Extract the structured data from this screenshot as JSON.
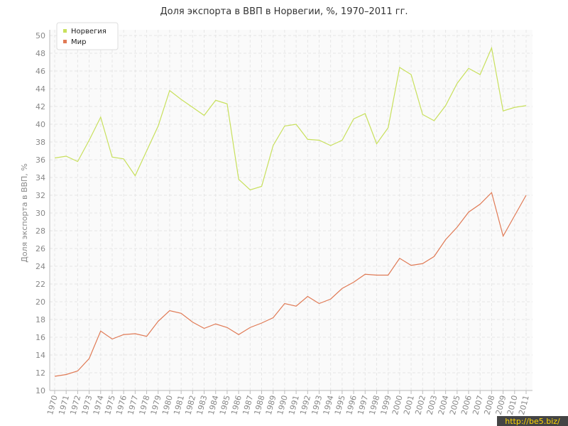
{
  "chart_data": {
    "type": "line",
    "title": "Доля экспорта в ВВП в Норвегии, %, 1970–2011 гг.",
    "y_label": "Доля экспорта в ВВП, %",
    "watermark": "http://be5.biz/",
    "categories": [
      "1970",
      "1971",
      "1972",
      "1973",
      "1974",
      "1975",
      "1976",
      "1977",
      "1978",
      "1979",
      "1980",
      "1981",
      "1982",
      "1983",
      "1984",
      "1985",
      "1986",
      "1987",
      "1988",
      "1989",
      "1990",
      "1991",
      "1992",
      "1993",
      "1994",
      "1995",
      "1996",
      "1997",
      "1998",
      "1999",
      "2000",
      "2001",
      "2002",
      "2003",
      "2004",
      "2005",
      "2006",
      "2007",
      "2008",
      "2009",
      "2010",
      "2011"
    ],
    "series": [
      {
        "name": "Норвегия",
        "color": "#c8e05c",
        "values": [
          36.2,
          36.4,
          35.8,
          38.2,
          40.8,
          36.3,
          36.1,
          34.2,
          37.0,
          39.8,
          43.8,
          42.8,
          41.9,
          41.0,
          42.7,
          42.3,
          33.8,
          32.6,
          33.0,
          37.6,
          39.8,
          40.0,
          38.3,
          38.2,
          37.6,
          38.2,
          40.6,
          41.2,
          37.8,
          39.6,
          46.4,
          45.6,
          41.1,
          40.4,
          42.1,
          44.6,
          46.3,
          45.6,
          48.6,
          41.5,
          41.9,
          42.1
        ]
      },
      {
        "name": "Мир",
        "color": "#e07a55",
        "values": [
          11.6,
          11.8,
          12.2,
          13.6,
          16.7,
          15.8,
          16.3,
          16.4,
          16.1,
          17.8,
          19.0,
          18.7,
          17.7,
          17.0,
          17.5,
          17.1,
          16.3,
          17.1,
          17.6,
          18.2,
          19.8,
          19.5,
          20.6,
          19.8,
          20.3,
          21.5,
          22.2,
          23.1,
          23.0,
          23.0,
          24.9,
          24.1,
          24.3,
          25.1,
          27.0,
          28.4,
          30.1,
          31.0,
          32.3,
          27.4,
          29.7,
          32.0
        ]
      }
    ],
    "ylim": [
      10,
      50
    ],
    "yticks": [
      10,
      12,
      14,
      16,
      18,
      20,
      22,
      24,
      26,
      28,
      30,
      32,
      34,
      36,
      38,
      40,
      42,
      44,
      46,
      48,
      50
    ],
    "grid": true,
    "legend": "top-left"
  }
}
